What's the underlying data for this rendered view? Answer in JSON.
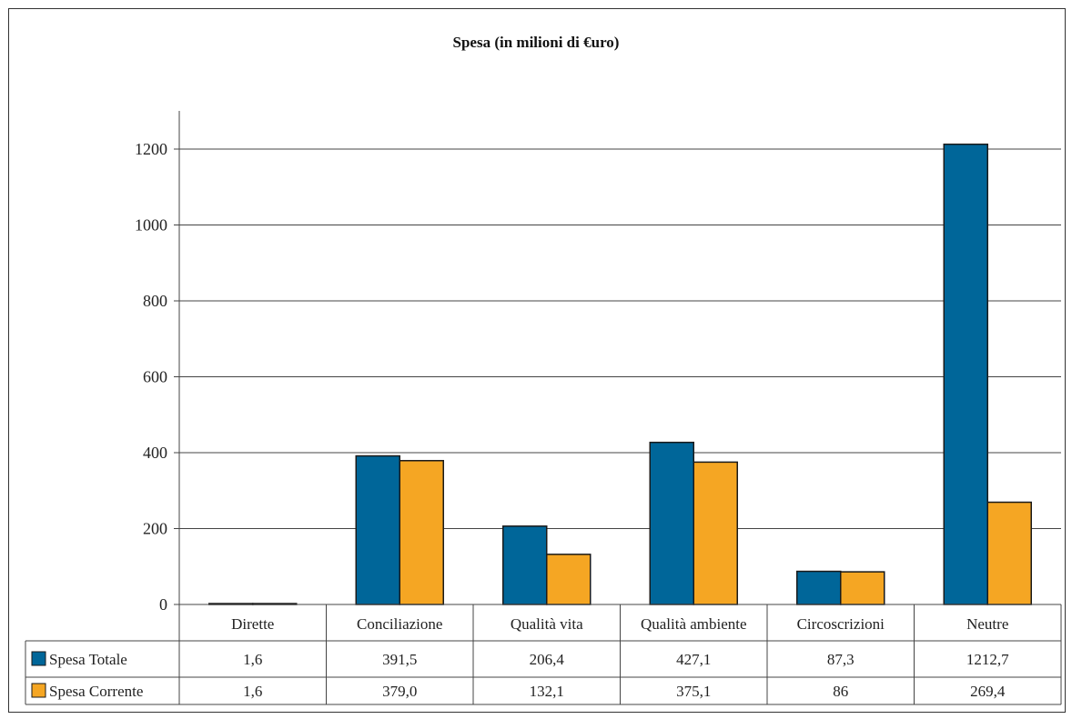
{
  "chart_data": {
    "type": "bar",
    "title": "Spesa (in milioni di €uro)",
    "categories": [
      "Dirette",
      "Conciliazione",
      "Qualità vita",
      "Qualità ambiente",
      "Circoscrizioni",
      "Neutre"
    ],
    "series": [
      {
        "name": "Spesa Totale",
        "color": "#006699",
        "values": [
          1.6,
          391.5,
          206.4,
          427.1,
          87.3,
          1212.7
        ],
        "labels": [
          "1,6",
          "391,5",
          "206,4",
          "427,1",
          "87,3",
          "1212,7"
        ]
      },
      {
        "name": "Spesa Corrente",
        "color": "#F5A623",
        "values": [
          1.6,
          379.0,
          132.1,
          375.1,
          86,
          269.4
        ],
        "labels": [
          "1,6",
          "379,0",
          "132,1",
          "375,1",
          "86",
          "269,4"
        ]
      }
    ],
    "ylim": [
      0,
      1300
    ],
    "yticks": [
      0,
      200,
      400,
      600,
      800,
      1000,
      1200
    ],
    "ytick_labels": [
      "0",
      "200",
      "400",
      "600",
      "800",
      "1000",
      "1200"
    ],
    "grid": true,
    "legend": "data-table-left",
    "xlabel": "",
    "ylabel": ""
  }
}
